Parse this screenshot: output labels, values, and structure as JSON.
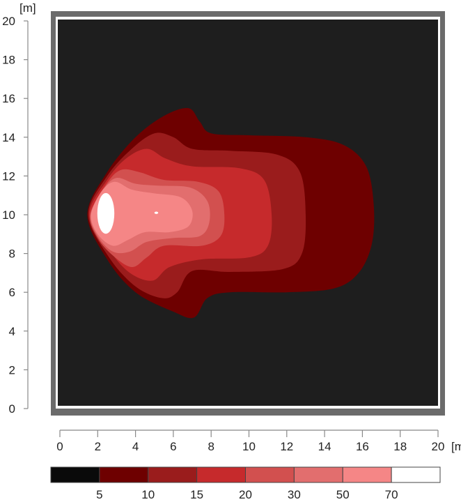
{
  "chart_data": {
    "type": "contour",
    "x_unit_label": "[m]",
    "y_unit_label": "[m]",
    "xlim": [
      0,
      20
    ],
    "ylim": [
      0,
      20
    ],
    "x_ticks": [
      "0",
      "2",
      "4",
      "6",
      "8",
      "10",
      "12",
      "14",
      "16",
      "18",
      "20"
    ],
    "y_ticks": [
      "0",
      "2",
      "4",
      "6",
      "8",
      "10",
      "12",
      "14",
      "16",
      "18",
      "20"
    ],
    "background_color": "#1e1e1e",
    "frame_color": "#6b6b6b",
    "legend": {
      "placement": "bottom",
      "breaks": [
        "5",
        "10",
        "15",
        "20",
        "30",
        "50",
        "70"
      ],
      "colors": [
        "#0a0a0a",
        "#6e0000",
        "#9a1c1c",
        "#c62a2c",
        "#d2504f",
        "#e26e6e",
        "#f58686",
        "#ffffff"
      ]
    },
    "contours": [
      {
        "level": 5,
        "color": "#6e0000",
        "points": [
          [
            1.45,
            10
          ],
          [
            2.5,
            12.2
          ],
          [
            4,
            14
          ],
          [
            5.5,
            15.1
          ],
          [
            6.8,
            15.5
          ],
          [
            7.4,
            14.8
          ],
          [
            8,
            14.2
          ],
          [
            10,
            14.1
          ],
          [
            13,
            14.0
          ],
          [
            15,
            13.6
          ],
          [
            16.2,
            12.5
          ],
          [
            16.6,
            10.5
          ],
          [
            16.5,
            8.5
          ],
          [
            15.8,
            7
          ],
          [
            14.5,
            6.2
          ],
          [
            12,
            6.0
          ],
          [
            9,
            6.0
          ],
          [
            7.8,
            5.7
          ],
          [
            7.1,
            4.7
          ],
          [
            6,
            5.0
          ],
          [
            4,
            6.0
          ],
          [
            2.5,
            7.7
          ]
        ]
      },
      {
        "level": 10,
        "color": "#9a1c1c",
        "points": [
          [
            1.5,
            10
          ],
          [
            2.5,
            12
          ],
          [
            3.8,
            13.4
          ],
          [
            5.0,
            14.2
          ],
          [
            6.0,
            14.0
          ],
          [
            7.0,
            13.4
          ],
          [
            9,
            13.3
          ],
          [
            11.5,
            13.1
          ],
          [
            12.7,
            12.2
          ],
          [
            13.0,
            10
          ],
          [
            12.8,
            8
          ],
          [
            11.8,
            7.2
          ],
          [
            9,
            7.05
          ],
          [
            7,
            7.1
          ],
          [
            6.2,
            6
          ],
          [
            5.4,
            5.7
          ],
          [
            4,
            6.3
          ],
          [
            2.6,
            7.8
          ]
        ]
      },
      {
        "level": 15,
        "color": "#c62a2c",
        "points": [
          [
            1.55,
            10
          ],
          [
            2.5,
            11.8
          ],
          [
            3.5,
            12.9
          ],
          [
            4.6,
            13.4
          ],
          [
            5.6,
            12.9
          ],
          [
            7,
            12.5
          ],
          [
            9.5,
            12.4
          ],
          [
            10.8,
            11.8
          ],
          [
            11.2,
            10
          ],
          [
            11.0,
            8.4
          ],
          [
            10,
            7.8
          ],
          [
            7.5,
            7.7
          ],
          [
            5.8,
            7.3
          ],
          [
            4.9,
            6.6
          ],
          [
            3.7,
            7
          ],
          [
            2.6,
            8.2
          ]
        ]
      },
      {
        "level": 20,
        "color": "#d2504f",
        "points": [
          [
            1.6,
            10
          ],
          [
            2.4,
            11.5
          ],
          [
            3.2,
            12.3
          ],
          [
            4.2,
            12.2
          ],
          [
            5.5,
            11.8
          ],
          [
            7.3,
            11.7
          ],
          [
            8.4,
            11.2
          ],
          [
            8.7,
            10
          ],
          [
            8.5,
            8.9
          ],
          [
            7.5,
            8.4
          ],
          [
            5.5,
            8.4
          ],
          [
            4.6,
            7.8
          ],
          [
            3.8,
            7.3
          ],
          [
            2.8,
            7.9
          ],
          [
            2.0,
            8.8
          ]
        ]
      },
      {
        "level": 30,
        "color": "#e26e6e",
        "points": [
          [
            1.62,
            10
          ],
          [
            2.3,
            11.3
          ],
          [
            3.0,
            11.9
          ],
          [
            4.0,
            11.6
          ],
          [
            5.2,
            11.5
          ],
          [
            6.9,
            11.4
          ],
          [
            7.8,
            10.7
          ],
          [
            7.9,
            9.6
          ],
          [
            7.4,
            8.9
          ],
          [
            6.0,
            8.8
          ],
          [
            4.6,
            8.6
          ],
          [
            3.7,
            8.1
          ],
          [
            2.8,
            8.1
          ],
          [
            2.0,
            8.9
          ]
        ]
      },
      {
        "level": 50,
        "color": "#f58686",
        "points": [
          [
            1.65,
            10
          ],
          [
            2.2,
            11.2
          ],
          [
            2.9,
            11.7
          ],
          [
            3.8,
            11.3
          ],
          [
            5,
            11.1
          ],
          [
            6.4,
            10.9
          ],
          [
            7,
            10.2
          ],
          [
            6.8,
            9.4
          ],
          [
            5.8,
            9.1
          ],
          [
            4.5,
            9.1
          ],
          [
            3.6,
            8.7
          ],
          [
            2.8,
            8.4
          ],
          [
            2.0,
            9
          ]
        ]
      },
      {
        "level": 70,
        "color": "#ffffff",
        "ellipses": [
          {
            "cx": 2.43,
            "cy": 10.07,
            "rx": 0.45,
            "ry": 1.05
          },
          {
            "cx": 5.1,
            "cy": 10.1,
            "rx": 0.1,
            "ry": 0.06
          }
        ]
      }
    ]
  }
}
